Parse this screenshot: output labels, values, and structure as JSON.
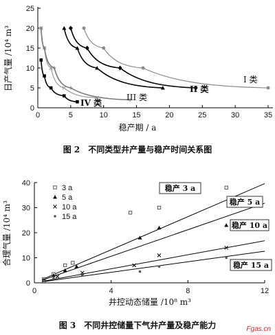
{
  "chart_data": [
    {
      "type": "line",
      "xlabel": "稳产期 / a",
      "ylabel": "日产气量 /10⁴ m³",
      "xlim": [
        0,
        35
      ],
      "ylim": [
        0,
        25
      ],
      "xticks": [
        "0",
        "5",
        "10",
        "15",
        "20",
        "25",
        "30",
        "35"
      ],
      "yticks": [
        "0",
        "5",
        "10",
        "15",
        "20",
        "25"
      ],
      "caption": "图 2　不同类型井产量与稳产时间关系图",
      "grid": false,
      "series": [
        {
          "name": "I 类",
          "color": "#8a8a8a",
          "marker": "circle",
          "x": [
            7,
            10,
            16,
            35
          ],
          "y": [
            20,
            15,
            10,
            5
          ]
        },
        {
          "name": "II 类",
          "color": "#000000",
          "marker": "diamond",
          "x": [
            5,
            7.5,
            12.5,
            24
          ],
          "y": [
            20,
            15,
            10,
            5
          ]
        },
        {
          "name": "III 类",
          "color": "#9a9a9a",
          "marker": "x",
          "x": [
            0.5,
            1,
            2,
            4,
            9
          ],
          "y": [
            20,
            15,
            10,
            5,
            2.5
          ]
        },
        {
          "name": "IV 类",
          "color": "#000000",
          "marker": "square",
          "x": [
            0.5,
            1,
            2,
            4,
            6
          ],
          "y": [
            12,
            8,
            5,
            3,
            1.5
          ]
        }
      ],
      "extra_series": [
        {
          "color": "#000000",
          "marker": "triangle",
          "x": [
            4,
            6,
            9,
            19
          ],
          "y": [
            20,
            15,
            10,
            5
          ]
        },
        {
          "color": "#777777",
          "marker": "plus",
          "x": [
            0.5,
            1,
            2.5,
            5,
            14
          ],
          "y": [
            20,
            15,
            10,
            5,
            2
          ]
        }
      ]
    },
    {
      "type": "scatter",
      "xlabel": "井控动态储量 /10⁸ m³",
      "ylabel": "合理气量 /10⁴ m³",
      "xlim": [
        0,
        12
      ],
      "ylim": [
        0,
        40
      ],
      "xticks": [
        "0",
        "4",
        "8",
        "12"
      ],
      "yticks": [
        "0",
        "10",
        "20",
        "30",
        "40"
      ],
      "caption": "图 3　不同井控储量下气井产量及稳产能力",
      "grid": false,
      "legend_position": "top-left",
      "series": [
        {
          "name": "3 a",
          "marker": "open-square",
          "x": [
            0.5,
            1,
            1.6,
            2,
            5,
            6.5,
            10
          ],
          "y": [
            1.5,
            3.5,
            7,
            8,
            28,
            30,
            38
          ],
          "line_y_at_x0": 0,
          "line_slope": 3.3,
          "box_label": "稳产 3 a"
        },
        {
          "name": "5 a",
          "marker": "filled-triangle",
          "x": [
            0.5,
            1,
            1.6,
            2.2,
            5.5,
            6.5,
            10
          ],
          "y": [
            1.2,
            3,
            5,
            6.5,
            18,
            22,
            23
          ],
          "line_y_at_x0": 0,
          "line_slope": 2.65,
          "box_label": "稳产 5 a"
        },
        {
          "name": "10 a",
          "marker": "x",
          "x": [
            0.5,
            1.2,
            2.5,
            5.2,
            6.5,
            10
          ],
          "y": [
            1,
            2.5,
            4,
            7,
            11,
            14
          ],
          "line_y_at_x0": 0,
          "line_slope": 1.4,
          "box_label": "稳产 10 a"
        },
        {
          "name": "15 a",
          "marker": "dot",
          "x": [
            0.5,
            1,
            2.5,
            5.5,
            6.5,
            10
          ],
          "y": [
            0.8,
            1.8,
            3,
            4.5,
            6.5,
            10
          ],
          "line_y_at_x0": 0,
          "line_slope": 1.05,
          "box_label": "稳产 15 a"
        }
      ]
    }
  ],
  "watermark": "Fgas.cn"
}
